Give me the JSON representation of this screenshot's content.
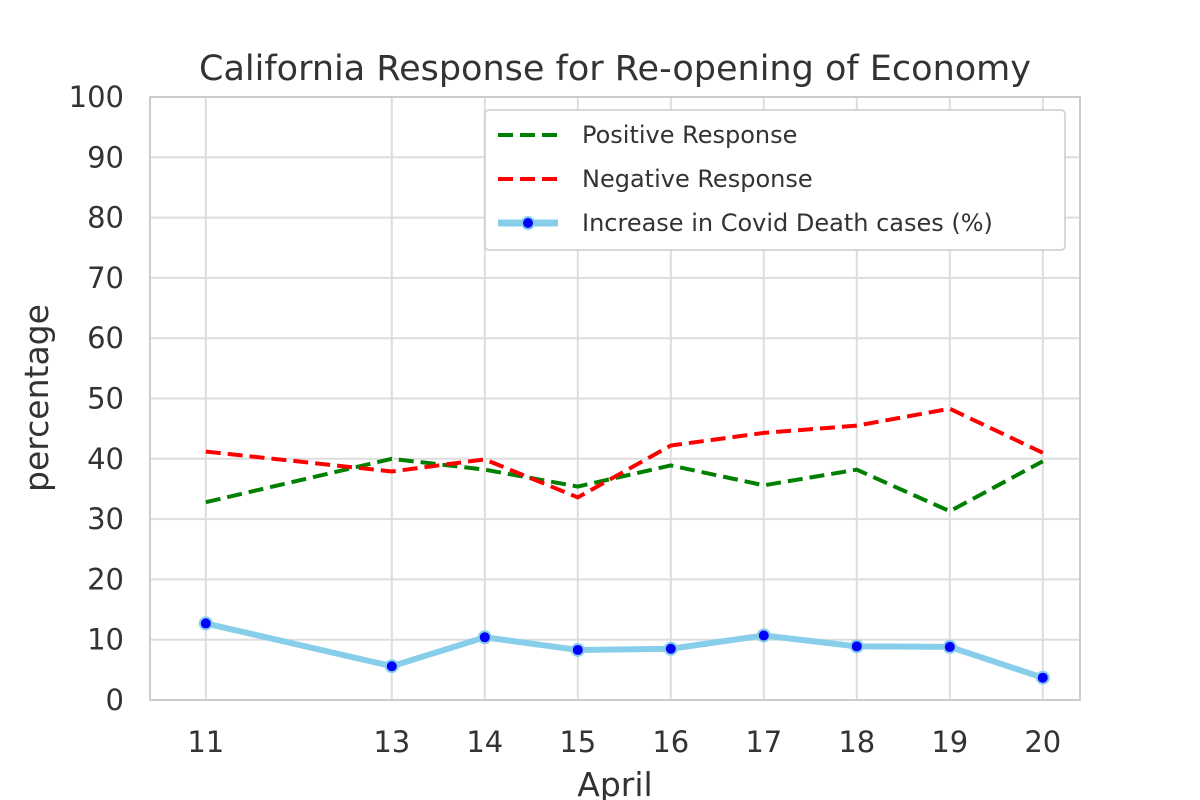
{
  "chart_data": {
    "type": "line",
    "title": "California Response for Re-opening of Economy",
    "xlabel": "April",
    "ylabel": "percentage",
    "x": [
      11,
      13,
      14,
      15,
      16,
      17,
      18,
      19,
      20
    ],
    "xticks": [
      "11",
      "13",
      "14",
      "15",
      "16",
      "17",
      "18",
      "19",
      "20"
    ],
    "xlim": [
      10.4,
      20.4
    ],
    "ylim": [
      0,
      100
    ],
    "yticks": [
      0,
      10,
      20,
      30,
      40,
      50,
      60,
      70,
      80,
      90,
      100
    ],
    "grid": true,
    "legend_position": "top-right",
    "series": [
      {
        "name": "Positive Response",
        "values": [
          32.8,
          40.0,
          38.2,
          35.4,
          38.9,
          35.6,
          38.2,
          31.3,
          39.6
        ],
        "color": "#008000",
        "style": "dashed"
      },
      {
        "name": "Negative Response",
        "values": [
          41.2,
          37.9,
          39.9,
          33.6,
          42.2,
          44.3,
          45.5,
          48.3,
          41.0
        ],
        "color": "#ff0000",
        "style": "dashed"
      },
      {
        "name": "Increase in Covid Death cases (%)",
        "values": [
          12.7,
          5.6,
          10.4,
          8.3,
          8.5,
          10.7,
          8.9,
          8.8,
          3.7
        ],
        "color": "#87ceeb",
        "marker_color": "#0000ff",
        "style": "solid-with-markers"
      }
    ]
  }
}
